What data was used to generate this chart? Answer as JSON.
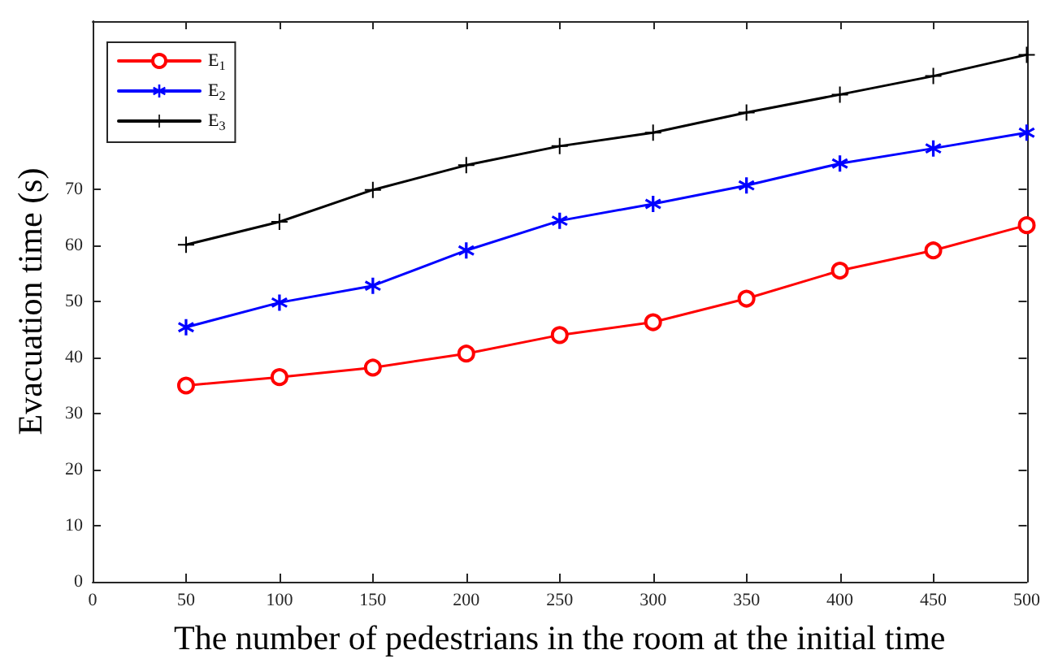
{
  "chart_data": {
    "type": "line",
    "xlabel": "The number of pedestrians in the room at the initial time",
    "ylabel": "Evacuation time (s)",
    "x": [
      50,
      100,
      150,
      200,
      250,
      300,
      350,
      400,
      450,
      500
    ],
    "series": [
      {
        "name": "E$_{1}$",
        "color": "#ff0000",
        "marker": "circle",
        "values": [
          35,
          36.5,
          38.2,
          40.7,
          44,
          46.3,
          50.5,
          55.5,
          59.1,
          63.6
        ]
      },
      {
        "name": "E$_{2}$",
        "color": "#0000ff",
        "marker": "star",
        "values": [
          45.4,
          49.8,
          52.8,
          59.1,
          64.4,
          67.4,
          70.7,
          74.6,
          77.3,
          80.1
        ]
      },
      {
        "name": "E$_{3}$",
        "color": "#000000",
        "marker": "cross",
        "values": [
          60.1,
          64.2,
          69.9,
          74.3,
          77.7,
          80.1,
          83.7,
          86.9,
          90.2,
          94
        ]
      }
    ],
    "xlim": [
      0,
      500
    ],
    "xticks": [
      0,
      50,
      100,
      150,
      200,
      250,
      300,
      350,
      400,
      450,
      500
    ],
    "ylim": [
      0,
      100
    ],
    "yticks": [
      0,
      10,
      20,
      30,
      40,
      50,
      60,
      70
    ],
    "grid": false,
    "legend": "top left",
    "line_style": "solid"
  }
}
